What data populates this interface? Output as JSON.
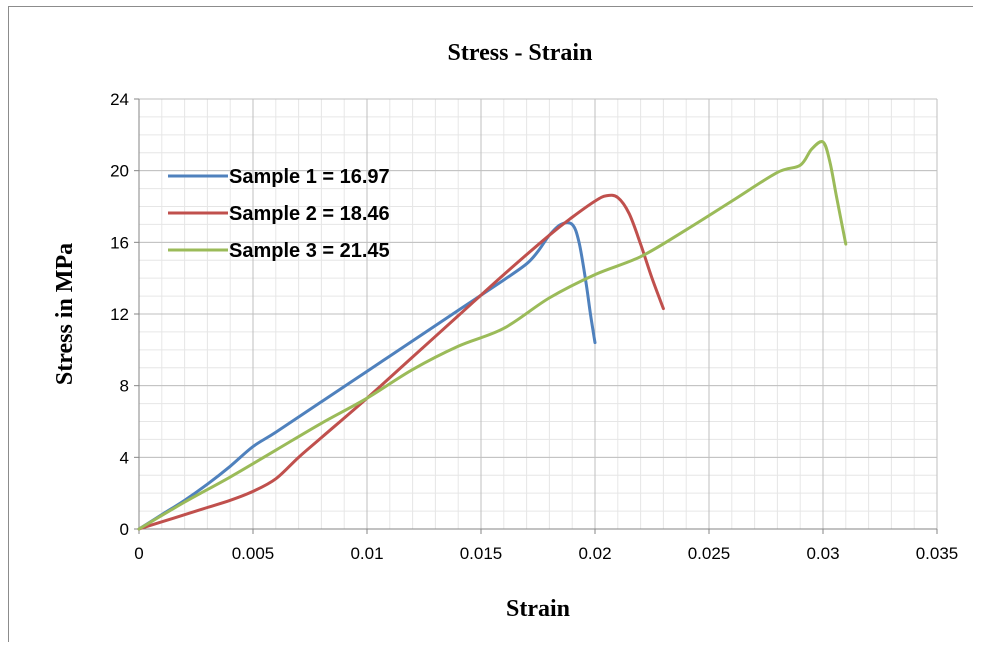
{
  "chart_data": {
    "type": "line",
    "title": "Stress - Strain",
    "xlabel": "Strain",
    "ylabel": "Stress in MPa",
    "xlim": [
      0,
      0.035
    ],
    "ylim": [
      0,
      24
    ],
    "x_ticks": [
      "0",
      "0.005",
      "0.01",
      "0.015",
      "0.02",
      "0.025",
      "0.03",
      "0.035"
    ],
    "y_ticks": [
      "0",
      "4",
      "8",
      "12",
      "16",
      "20",
      "24"
    ],
    "grid": true,
    "legend_position": "top-left",
    "series": [
      {
        "name": "Sample 1 = 16.97",
        "color": "#4F81BD",
        "x": [
          0,
          0.001,
          0.002,
          0.003,
          0.004,
          0.005,
          0.006,
          0.008,
          0.01,
          0.012,
          0.014,
          0.016,
          0.017,
          0.0175,
          0.018,
          0.0185,
          0.019,
          0.0193,
          0.0196,
          0.0198,
          0.02
        ],
        "y": [
          0,
          0.8,
          1.6,
          2.5,
          3.5,
          4.6,
          5.4,
          7.1,
          8.8,
          10.5,
          12.2,
          13.9,
          14.8,
          15.5,
          16.4,
          17.0,
          17.0,
          16.0,
          13.8,
          12.0,
          10.4
        ]
      },
      {
        "name": "Sample 2 = 18.46",
        "color": "#C0504D",
        "x": [
          0,
          0.001,
          0.002,
          0.003,
          0.004,
          0.005,
          0.006,
          0.007,
          0.008,
          0.01,
          0.012,
          0.014,
          0.016,
          0.018,
          0.019,
          0.02,
          0.0205,
          0.021,
          0.0215,
          0.022,
          0.0225,
          0.023
        ],
        "y": [
          0,
          0.4,
          0.8,
          1.2,
          1.6,
          2.1,
          2.8,
          4.0,
          5.1,
          7.3,
          9.6,
          11.9,
          14.2,
          16.4,
          17.4,
          18.3,
          18.6,
          18.5,
          17.6,
          15.9,
          14.0,
          12.3
        ]
      },
      {
        "name": "Sample 3 = 21.45",
        "color": "#9BBB59",
        "x": [
          0,
          0.002,
          0.004,
          0.006,
          0.008,
          0.01,
          0.012,
          0.014,
          0.016,
          0.018,
          0.02,
          0.022,
          0.024,
          0.026,
          0.028,
          0.029,
          0.0295,
          0.03,
          0.0303,
          0.0306,
          0.031
        ],
        "y": [
          0,
          1.5,
          2.9,
          4.4,
          5.9,
          7.3,
          8.9,
          10.2,
          11.2,
          12.9,
          14.2,
          15.2,
          16.7,
          18.3,
          19.9,
          20.3,
          21.2,
          21.6,
          20.5,
          18.5,
          15.9
        ]
      }
    ]
  }
}
